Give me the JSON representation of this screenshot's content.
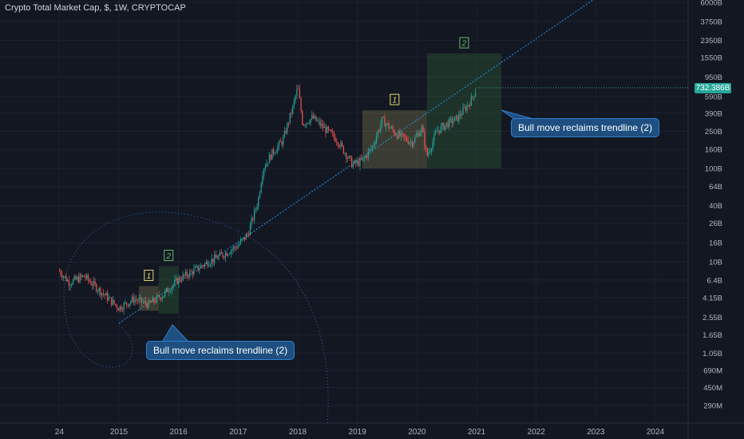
{
  "header": {
    "title": "Crypto Total Market Cap, $, 1W, CRYPTOCAP"
  },
  "price_tag": "732.386B",
  "colors": {
    "background": "#131722",
    "up": "#26a69a",
    "down": "#ef5350",
    "trendline": "#2196f3",
    "box_yellow": "#c9c26a",
    "box_green": "#4caf50",
    "callout_bg": "#1e4f80"
  },
  "annotations": {
    "callout_left": "Bull move reclaims trendline (2)",
    "callout_right": "Bull move reclaims trendline (2)",
    "box1_left": "1",
    "box2_left": "2",
    "box1_right": "1",
    "box2_right": "2"
  },
  "chart_data": {
    "type": "line",
    "title": "Crypto Total Market Cap, $, 1W, CRYPTOCAP",
    "scale": "log",
    "x_ticks": [
      "24",
      "2015",
      "2016",
      "2017",
      "2018",
      "2019",
      "2020",
      "2021",
      "2022",
      "2023",
      "2024"
    ],
    "y_ticks": [
      "6000B",
      "3750B",
      "2350B",
      "1550B",
      "950B",
      "590B",
      "390B",
      "250B",
      "160B",
      "100B",
      "64B",
      "40B",
      "26B",
      "16B",
      "10B",
      "6.4B",
      "4.15B",
      "2.55B",
      "1.65B",
      "1.05B",
      "690M",
      "450M",
      "290M"
    ],
    "series": [
      {
        "x": [
          "2014-01",
          "2014-03",
          "2014-06",
          "2014-09",
          "2015-01",
          "2015-04",
          "2015-07",
          "2015-10",
          "2016-01",
          "2016-04",
          "2016-07",
          "2016-10",
          "2017-01",
          "2017-03",
          "2017-05",
          "2017-06",
          "2017-08",
          "2017-10",
          "2017-12",
          "2018-01",
          "2018-02",
          "2018-04",
          "2018-06",
          "2018-09",
          "2018-12",
          "2019-02",
          "2019-04",
          "2019-06",
          "2019-09",
          "2019-12",
          "2020-02",
          "2020-03",
          "2020-05",
          "2020-07",
          "2020-09",
          "2020-11",
          "2020-12",
          "2021-01"
        ],
        "values": [
          8,
          6,
          7,
          5,
          3.2,
          4,
          3.5,
          4.5,
          6.5,
          8,
          10,
          12,
          15,
          20,
          45,
          100,
          150,
          200,
          450,
          750,
          300,
          350,
          280,
          200,
          110,
          120,
          170,
          330,
          230,
          190,
          270,
          135,
          250,
          300,
          340,
          460,
          550,
          732.386
        ]
      }
    ],
    "trendline": {
      "from": [
        "2015-01",
        2.2
      ],
      "to": [
        "2021-01",
        900
      ]
    },
    "boxes": [
      {
        "label": "1",
        "color": "yellow",
        "x": [
          "2015-05",
          "2015-09"
        ],
        "y": [
          3,
          5.5
        ]
      },
      {
        "label": "2",
        "color": "green",
        "x": [
          "2015-09",
          "2016-01"
        ],
        "y": [
          2.8,
          9
        ]
      },
      {
        "label": "1",
        "color": "yellow",
        "x": [
          "2019-02",
          "2020-03"
        ],
        "y": [
          100,
          420
        ]
      },
      {
        "label": "2",
        "color": "green",
        "x": [
          "2020-03",
          "2021-06"
        ],
        "y": [
          100,
          1700
        ]
      }
    ],
    "last_value": 732.386
  }
}
